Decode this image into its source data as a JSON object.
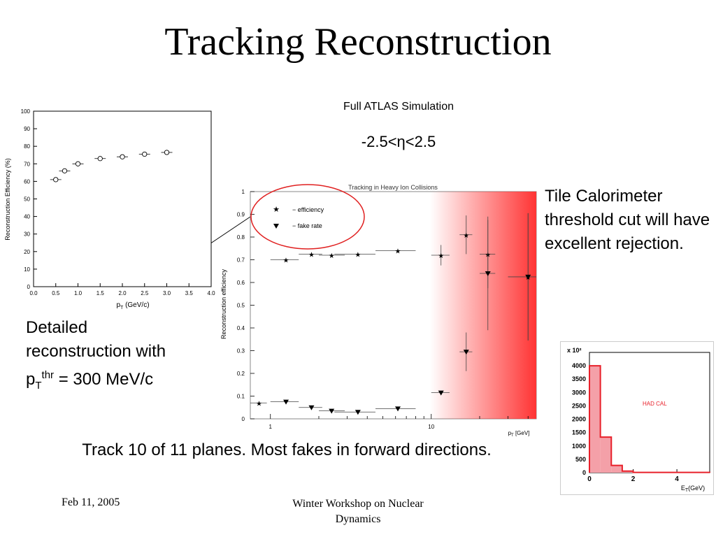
{
  "slide": {
    "title": "Tracking Reconstruction",
    "simulation_label": "Full ATLAS Simulation",
    "eta_range": "-2.5<η<2.5",
    "right_text": "Tile Calorimeter threshold cut will have excellent rejection.",
    "left_text_line1": "Detailed",
    "left_text_line2": "reconstruction with",
    "left_text_p": "p",
    "left_text_sub": "T",
    "left_text_sup": "thr",
    "left_text_rest": " = 300 MeV/c",
    "caption": "Track 10 of 11 planes. Most fakes in forward directions.",
    "footer_date": "Feb 11, 2005",
    "footer_conference_line1": "Winter Workshop on Nuclear",
    "footer_conference_line2": "Dynamics"
  },
  "colors": {
    "highlight": "#ff3333",
    "ellipse": "#e02020",
    "histogram": "#e8202a",
    "histogram_fill": "#f4a0a8"
  },
  "chart_data": [
    {
      "type": "scatter",
      "title": "",
      "xlabel": "p",
      "xlabel_sub": "T",
      "xlabel_unit": " (GeV/c)",
      "ylabel": "Reconstruction Efficiency (%)",
      "xlim": [
        0.0,
        4.0
      ],
      "ylim": [
        0,
        100
      ],
      "xticks": [
        "0.0",
        "0.5",
        "1.0",
        "1.5",
        "2.0",
        "2.5",
        "3.0",
        "3.5",
        "4.0"
      ],
      "yticks": [
        "0",
        "10",
        "20",
        "30",
        "40",
        "50",
        "60",
        "70",
        "80",
        "90",
        "100"
      ],
      "series": [
        {
          "marker": "open-circle",
          "x": [
            0.5,
            0.7,
            1.0,
            1.5,
            2.0,
            2.5,
            3.0
          ],
          "y": [
            61,
            66,
            70,
            73,
            74,
            75.5,
            76.5
          ]
        }
      ]
    },
    {
      "type": "scatter",
      "title": "Tracking in Heavy Ion Collisions",
      "xlabel": "p",
      "xlabel_sub": "T",
      "xlabel_unit": " [GeV]",
      "ylabel": "Reconstruction efficiency",
      "xscale": "log",
      "xlim": [
        0.75,
        45
      ],
      "ylim": [
        0,
        1
      ],
      "xticks": [
        {
          "value": 1,
          "label": "1"
        },
        {
          "value": 10,
          "label": "10"
        }
      ],
      "yticks": [
        "0",
        "0.1",
        "0.2",
        "0.3",
        "0.4",
        "0.5",
        "0.6",
        "0.7",
        "0.8",
        "0.9",
        "1"
      ],
      "legend": [
        "− efficiency",
        "− fake rate"
      ],
      "legend_position": "top-left",
      "series": [
        {
          "name": "− efficiency",
          "marker": "star",
          "x": [
            0.85,
            1.25,
            1.8,
            2.4,
            3.5,
            6.2,
            11.5,
            16.5,
            22.5,
            40
          ],
          "y": [
            0.07,
            0.7,
            0.725,
            0.72,
            0.725,
            0.74,
            0.72,
            0.81,
            0.725,
            0.625
          ],
          "yerr": [
            0.005,
            0.005,
            0.005,
            0.005,
            0.005,
            0.005,
            0.045,
            0.085,
            0.15,
            0.28
          ],
          "xerr_low": [
            0.1,
            0.25,
            0.3,
            0.4,
            1.0,
            1.7,
            1.5,
            1.5,
            2.5,
            10
          ],
          "xerr_high": [
            0.1,
            0.25,
            0.3,
            0.5,
            1.0,
            1.8,
            1.5,
            1.5,
            2.5,
            10
          ]
        },
        {
          "name": "− fake rate",
          "marker": "triangle-down",
          "x": [
            1.25,
            1.8,
            2.4,
            3.5,
            6.2,
            11.5,
            16.5,
            22.5,
            40
          ],
          "y": [
            0.075,
            0.05,
            0.035,
            0.03,
            0.045,
            0.115,
            0.295,
            0.64,
            0.625
          ],
          "yerr": [
            0.005,
            0.005,
            0.005,
            0.005,
            0.005,
            0.005,
            0.085,
            0.25,
            0.28
          ],
          "xerr_low": [
            0.25,
            0.3,
            0.4,
            1.0,
            1.7,
            1.5,
            1.5,
            2.5,
            10
          ],
          "xerr_high": [
            0.25,
            0.3,
            0.5,
            1.0,
            1.8,
            1.5,
            1.5,
            2.5,
            10
          ]
        }
      ]
    },
    {
      "type": "histogram",
      "title": "",
      "annotation": "HAD CAL",
      "scale_label": "x 10²",
      "xlabel": "E",
      "xlabel_sub": "T",
      "xlabel_unit": "(GeV)",
      "xlim": [
        0,
        5.5
      ],
      "ylim": [
        0,
        4500
      ],
      "xticks": [
        "0",
        "2",
        "4"
      ],
      "yticks": [
        "0",
        "500",
        "1000",
        "1500",
        "2000",
        "2500",
        "3000",
        "3500",
        "4000"
      ],
      "bins": [
        [
          0,
          0.5
        ],
        [
          0.5,
          1.0
        ],
        [
          1.0,
          1.5
        ],
        [
          1.5,
          2.0
        ],
        [
          2.0,
          5.5
        ]
      ],
      "values": [
        4000,
        1330,
        270,
        60,
        10
      ]
    }
  ]
}
